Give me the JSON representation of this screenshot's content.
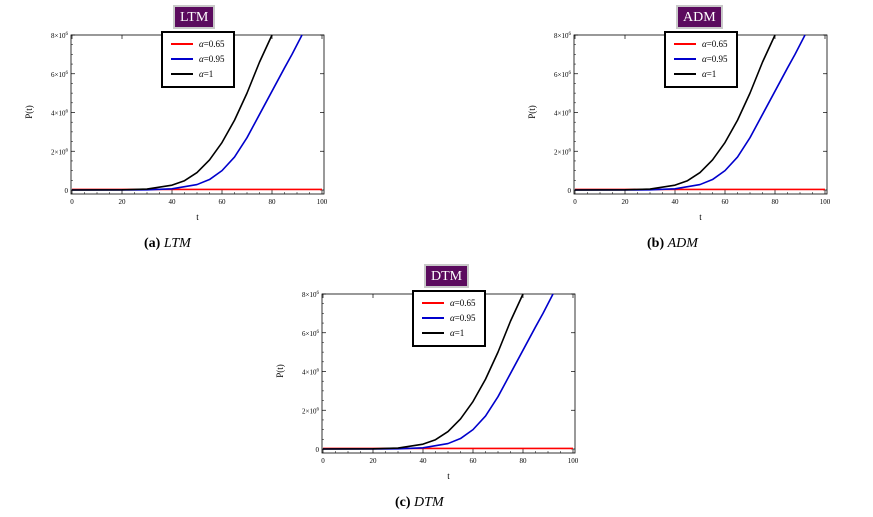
{
  "chart_data": [
    {
      "type": "line",
      "title": "LTM",
      "caption_tag": "(a)",
      "caption_text": "LTM",
      "xlabel": "t",
      "ylabel": "P(t)",
      "xlim": [
        0,
        100
      ],
      "ylim": [
        0,
        8000000
      ],
      "xticks": [
        0,
        20,
        40,
        60,
        80,
        100
      ],
      "yticks": [
        0,
        2000000,
        4000000,
        6000000,
        8000000
      ],
      "ytick_labels": [
        {
          "mantissa": "0",
          "exp": ""
        },
        {
          "mantissa": "2×10",
          "exp": "6"
        },
        {
          "mantissa": "4×10",
          "exp": "6"
        },
        {
          "mantissa": "6×10",
          "exp": "6"
        },
        {
          "mantissa": "8×10",
          "exp": "6"
        }
      ],
      "legend": {
        "placement": "top-center"
      },
      "series": [
        {
          "name": "α=0.65",
          "symbol": "α",
          "value_text": "=0.65",
          "color": "#ff0000",
          "x": [
            0,
            100
          ],
          "y": [
            30000,
            30000
          ]
        },
        {
          "name": "α=0.95",
          "symbol": "α",
          "value_text": "=0.95",
          "color": "#0000cc",
          "x": [
            0,
            20,
            30,
            40,
            50,
            55,
            60,
            65,
            70,
            75,
            80,
            85,
            88,
            92
          ],
          "y": [
            0,
            1000,
            10000,
            60000,
            280000,
            540000,
            1000000,
            1700000,
            2700000,
            3900000,
            5100000,
            6300000,
            7000000,
            8000000
          ]
        },
        {
          "name": "α=1",
          "symbol": "α",
          "value_text": "=1",
          "color": "#000000",
          "x": [
            0,
            20,
            30,
            40,
            45,
            50,
            55,
            60,
            65,
            70,
            75,
            80
          ],
          "y": [
            0,
            10000,
            50000,
            250000,
            480000,
            900000,
            1550000,
            2450000,
            3600000,
            5000000,
            6600000,
            8000000
          ]
        }
      ]
    },
    {
      "type": "line",
      "title": "ADM",
      "caption_tag": "(b)",
      "caption_text": "ADM",
      "xlabel": "t",
      "ylabel": "P(t)",
      "xlim": [
        0,
        100
      ],
      "ylim": [
        0,
        8000000
      ],
      "xticks": [
        0,
        20,
        40,
        60,
        80,
        100
      ],
      "yticks": [
        0,
        2000000,
        4000000,
        6000000,
        8000000
      ],
      "ytick_labels": [
        {
          "mantissa": "0",
          "exp": ""
        },
        {
          "mantissa": "2×10",
          "exp": "6"
        },
        {
          "mantissa": "4×10",
          "exp": "6"
        },
        {
          "mantissa": "6×10",
          "exp": "6"
        },
        {
          "mantissa": "8×10",
          "exp": "6"
        }
      ],
      "legend": {
        "placement": "top-center"
      },
      "series": [
        {
          "name": "α=0.65",
          "symbol": "α",
          "value_text": "=0.65",
          "color": "#ff0000",
          "x": [
            0,
            100
          ],
          "y": [
            30000,
            30000
          ]
        },
        {
          "name": "α=0.95",
          "symbol": "α",
          "value_text": "=0.95",
          "color": "#0000cc",
          "x": [
            0,
            20,
            30,
            40,
            50,
            55,
            60,
            65,
            70,
            75,
            80,
            85,
            88,
            92
          ],
          "y": [
            0,
            1000,
            10000,
            60000,
            280000,
            540000,
            1000000,
            1700000,
            2700000,
            3900000,
            5100000,
            6300000,
            7000000,
            8000000
          ]
        },
        {
          "name": "α=1",
          "symbol": "α",
          "value_text": "=1",
          "color": "#000000",
          "x": [
            0,
            20,
            30,
            40,
            45,
            50,
            55,
            60,
            65,
            70,
            75,
            80
          ],
          "y": [
            0,
            10000,
            50000,
            250000,
            480000,
            900000,
            1550000,
            2450000,
            3600000,
            5000000,
            6600000,
            8000000
          ]
        }
      ]
    },
    {
      "type": "line",
      "title": "DTM",
      "caption_tag": "(c)",
      "caption_text": "DTM",
      "xlabel": "t",
      "ylabel": "P(t)",
      "xlim": [
        0,
        100
      ],
      "ylim": [
        0,
        8000000
      ],
      "xticks": [
        0,
        20,
        40,
        60,
        80,
        100
      ],
      "yticks": [
        0,
        2000000,
        4000000,
        6000000,
        8000000
      ],
      "ytick_labels": [
        {
          "mantissa": "0",
          "exp": ""
        },
        {
          "mantissa": "2×10",
          "exp": "6"
        },
        {
          "mantissa": "4×10",
          "exp": "6"
        },
        {
          "mantissa": "6×10",
          "exp": "6"
        },
        {
          "mantissa": "8×10",
          "exp": "6"
        }
      ],
      "legend": {
        "placement": "top-center"
      },
      "series": [
        {
          "name": "α=0.65",
          "symbol": "α",
          "value_text": "=0.65",
          "color": "#ff0000",
          "x": [
            0,
            100
          ],
          "y": [
            30000,
            30000
          ]
        },
        {
          "name": "α=0.95",
          "symbol": "α",
          "value_text": "=0.95",
          "color": "#0000cc",
          "x": [
            0,
            20,
            30,
            40,
            50,
            55,
            60,
            65,
            70,
            75,
            80,
            85,
            88,
            92
          ],
          "y": [
            0,
            1000,
            10000,
            60000,
            280000,
            540000,
            1000000,
            1700000,
            2700000,
            3900000,
            5100000,
            6300000,
            7000000,
            8000000
          ]
        },
        {
          "name": "α=1",
          "symbol": "α",
          "value_text": "=1",
          "color": "#000000",
          "x": [
            0,
            20,
            30,
            40,
            45,
            50,
            55,
            60,
            65,
            70,
            75,
            80
          ],
          "y": [
            0,
            10000,
            50000,
            250000,
            480000,
            900000,
            1550000,
            2450000,
            3600000,
            5000000,
            6600000,
            8000000
          ]
        }
      ]
    }
  ]
}
